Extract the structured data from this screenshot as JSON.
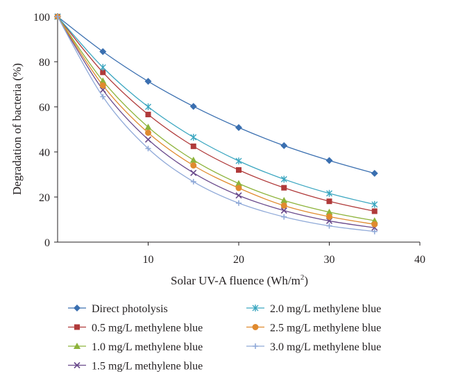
{
  "chart_data": {
    "type": "line",
    "title": "",
    "xlabel": "Solar UV-A fluence (Wh/m",
    "xlabel_sup": "2",
    "xlabel_end": ")",
    "ylabel": "Degradation of bacteria (%)",
    "xlim": [
      0,
      40
    ],
    "ylim": [
      0,
      100
    ],
    "xticks": [
      10,
      20,
      30,
      40
    ],
    "yticks": [
      0,
      20,
      40,
      60,
      80,
      100
    ],
    "grid": false,
    "legend_position": "bottom",
    "x": [
      0,
      5,
      10,
      15,
      20,
      25,
      30,
      35
    ],
    "series": [
      {
        "name": "Direct photolysis",
        "color": "#3a6fb0",
        "marker": "diamond",
        "values": [
          100,
          84.5,
          71.3,
          60.2,
          50.8,
          42.8,
          36.2,
          30.5
        ]
      },
      {
        "name": "0.5 mg/L methylene blue",
        "color": "#b03a3a",
        "marker": "square",
        "values": [
          100,
          75.3,
          56.6,
          42.5,
          32.0,
          24.1,
          18.1,
          13.7
        ]
      },
      {
        "name": "1.0 mg/L methylene blue",
        "color": "#8db33a",
        "marker": "triangle",
        "values": [
          100,
          71.5,
          51.0,
          36.4,
          26.0,
          18.5,
          13.3,
          9.5
        ]
      },
      {
        "name": "1.5 mg/L methylene blue",
        "color": "#6a4a8c",
        "marker": "x",
        "values": [
          100,
          67.5,
          45.5,
          30.7,
          20.7,
          14.0,
          9.4,
          6.4
        ]
      },
      {
        "name": "2.0 mg/L methylene blue",
        "color": "#3aa6c0",
        "marker": "star",
        "values": [
          100,
          77.5,
          60.0,
          46.5,
          36.0,
          27.9,
          21.6,
          16.7
        ]
      },
      {
        "name": "2.5 mg/L methylene blue",
        "color": "#e08a2e",
        "marker": "circle",
        "values": [
          100,
          69.5,
          48.5,
          34.0,
          24.0,
          16.2,
          11.3,
          7.9
        ]
      },
      {
        "name": "3.0 mg/L methylene blue",
        "color": "#8fa9d8",
        "marker": "plus",
        "values": [
          100,
          64.5,
          41.5,
          26.8,
          17.3,
          11.2,
          7.2,
          4.7
        ]
      }
    ]
  }
}
